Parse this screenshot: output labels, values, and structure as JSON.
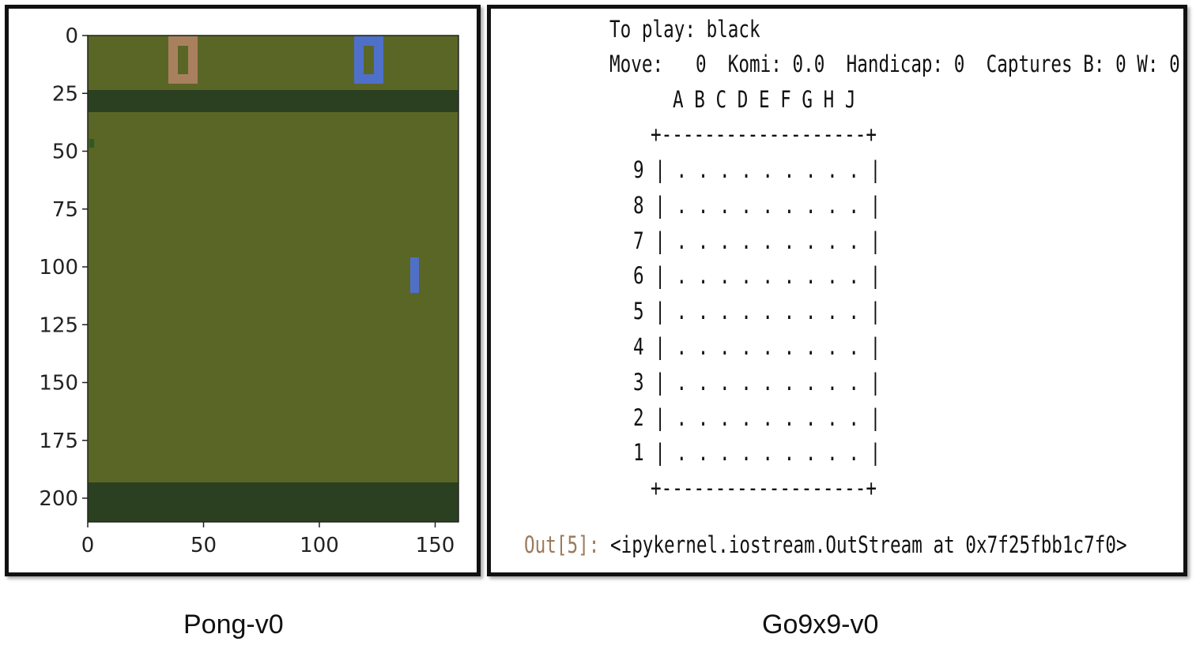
{
  "pong": {
    "caption": "Pong-v0",
    "x_ticks": [
      "0",
      "50",
      "100",
      "150"
    ],
    "y_ticks": [
      "0",
      "25",
      "50",
      "75",
      "100",
      "125",
      "150",
      "175",
      "200"
    ],
    "colors": {
      "field": "#5a6626",
      "band": "#2b4020",
      "score_left": "#a9805e",
      "score_right": "#4f70c8",
      "paddle_right": "#4f70c8",
      "ball_hint": "#2e5a22"
    }
  },
  "go": {
    "caption": "Go9x9-v0",
    "to_play": "To play: black",
    "status_line": "Move:   0  Komi: 0.0  Handicap: 0  Captures B: 0 W: 0",
    "columns_line": "A B C D E F G H J",
    "border_line": "+-------------------+",
    "rows": [
      {
        "num": "9",
        "cells": "| . . . . . . . . . |"
      },
      {
        "num": "8",
        "cells": "| . . . . . . . . . |"
      },
      {
        "num": "7",
        "cells": "| . . . . . . . . . |"
      },
      {
        "num": "6",
        "cells": "| . . . . . . . . . |"
      },
      {
        "num": "5",
        "cells": "| . . . . . . . . . |"
      },
      {
        "num": "4",
        "cells": "| . . . . . . . . . |"
      },
      {
        "num": "3",
        "cells": "| . . . . . . . . . |"
      },
      {
        "num": "2",
        "cells": "| . . . . . . . . . |"
      },
      {
        "num": "1",
        "cells": "| . . . . . . . . . |"
      }
    ],
    "out_prompt": "Out[5]:",
    "out_value": "<ipykernel.iostream.OutStream at 0x7f25fbb1c7f0>"
  }
}
